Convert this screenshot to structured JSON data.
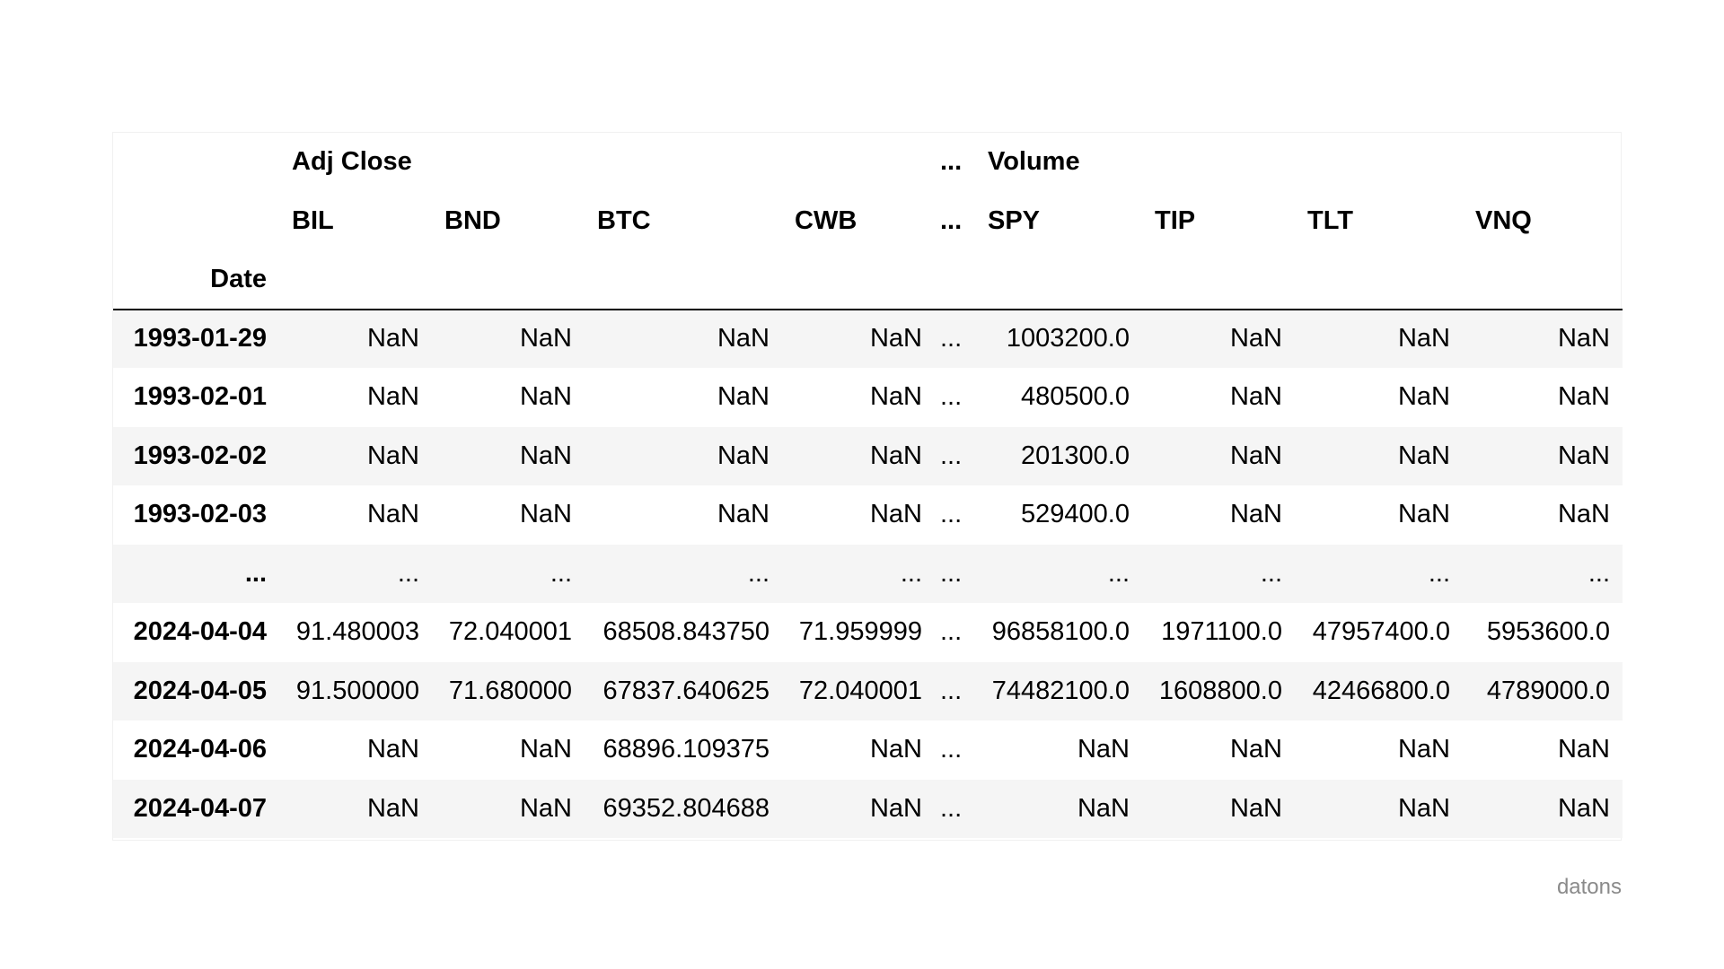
{
  "table": {
    "top_header": [
      "",
      "Adj Close",
      "",
      "",
      "",
      "...",
      "Volume",
      "",
      "",
      ""
    ],
    "ticker_header": [
      "",
      "BIL",
      "BND",
      "BTC",
      "CWB",
      "...",
      "SPY",
      "TIP",
      "TLT",
      "VNQ"
    ],
    "index_name": "Date",
    "rows": [
      [
        "1993-01-29",
        "NaN",
        "NaN",
        "NaN",
        "NaN",
        "...",
        "1003200.0",
        "NaN",
        "NaN",
        "NaN"
      ],
      [
        "1993-02-01",
        "NaN",
        "NaN",
        "NaN",
        "NaN",
        "...",
        "480500.0",
        "NaN",
        "NaN",
        "NaN"
      ],
      [
        "1993-02-02",
        "NaN",
        "NaN",
        "NaN",
        "NaN",
        "...",
        "201300.0",
        "NaN",
        "NaN",
        "NaN"
      ],
      [
        "1993-02-03",
        "NaN",
        "NaN",
        "NaN",
        "NaN",
        "...",
        "529400.0",
        "NaN",
        "NaN",
        "NaN"
      ],
      [
        "...",
        "...",
        "...",
        "...",
        "...",
        "...",
        "...",
        "...",
        "...",
        "..."
      ],
      [
        "2024-04-04",
        "91.480003",
        "72.040001",
        "68508.843750",
        "71.959999",
        "...",
        "96858100.0",
        "1971100.0",
        "47957400.0",
        "5953600.0"
      ],
      [
        "2024-04-05",
        "91.500000",
        "71.680000",
        "67837.640625",
        "72.040001",
        "...",
        "74482100.0",
        "1608800.0",
        "42466800.0",
        "4789000.0"
      ],
      [
        "2024-04-06",
        "NaN",
        "NaN",
        "68896.109375",
        "NaN",
        "...",
        "NaN",
        "NaN",
        "NaN",
        "NaN"
      ],
      [
        "2024-04-07",
        "NaN",
        "NaN",
        "69352.804688",
        "NaN",
        "...",
        "NaN",
        "NaN",
        "NaN",
        "NaN"
      ]
    ]
  },
  "watermark": "datons"
}
